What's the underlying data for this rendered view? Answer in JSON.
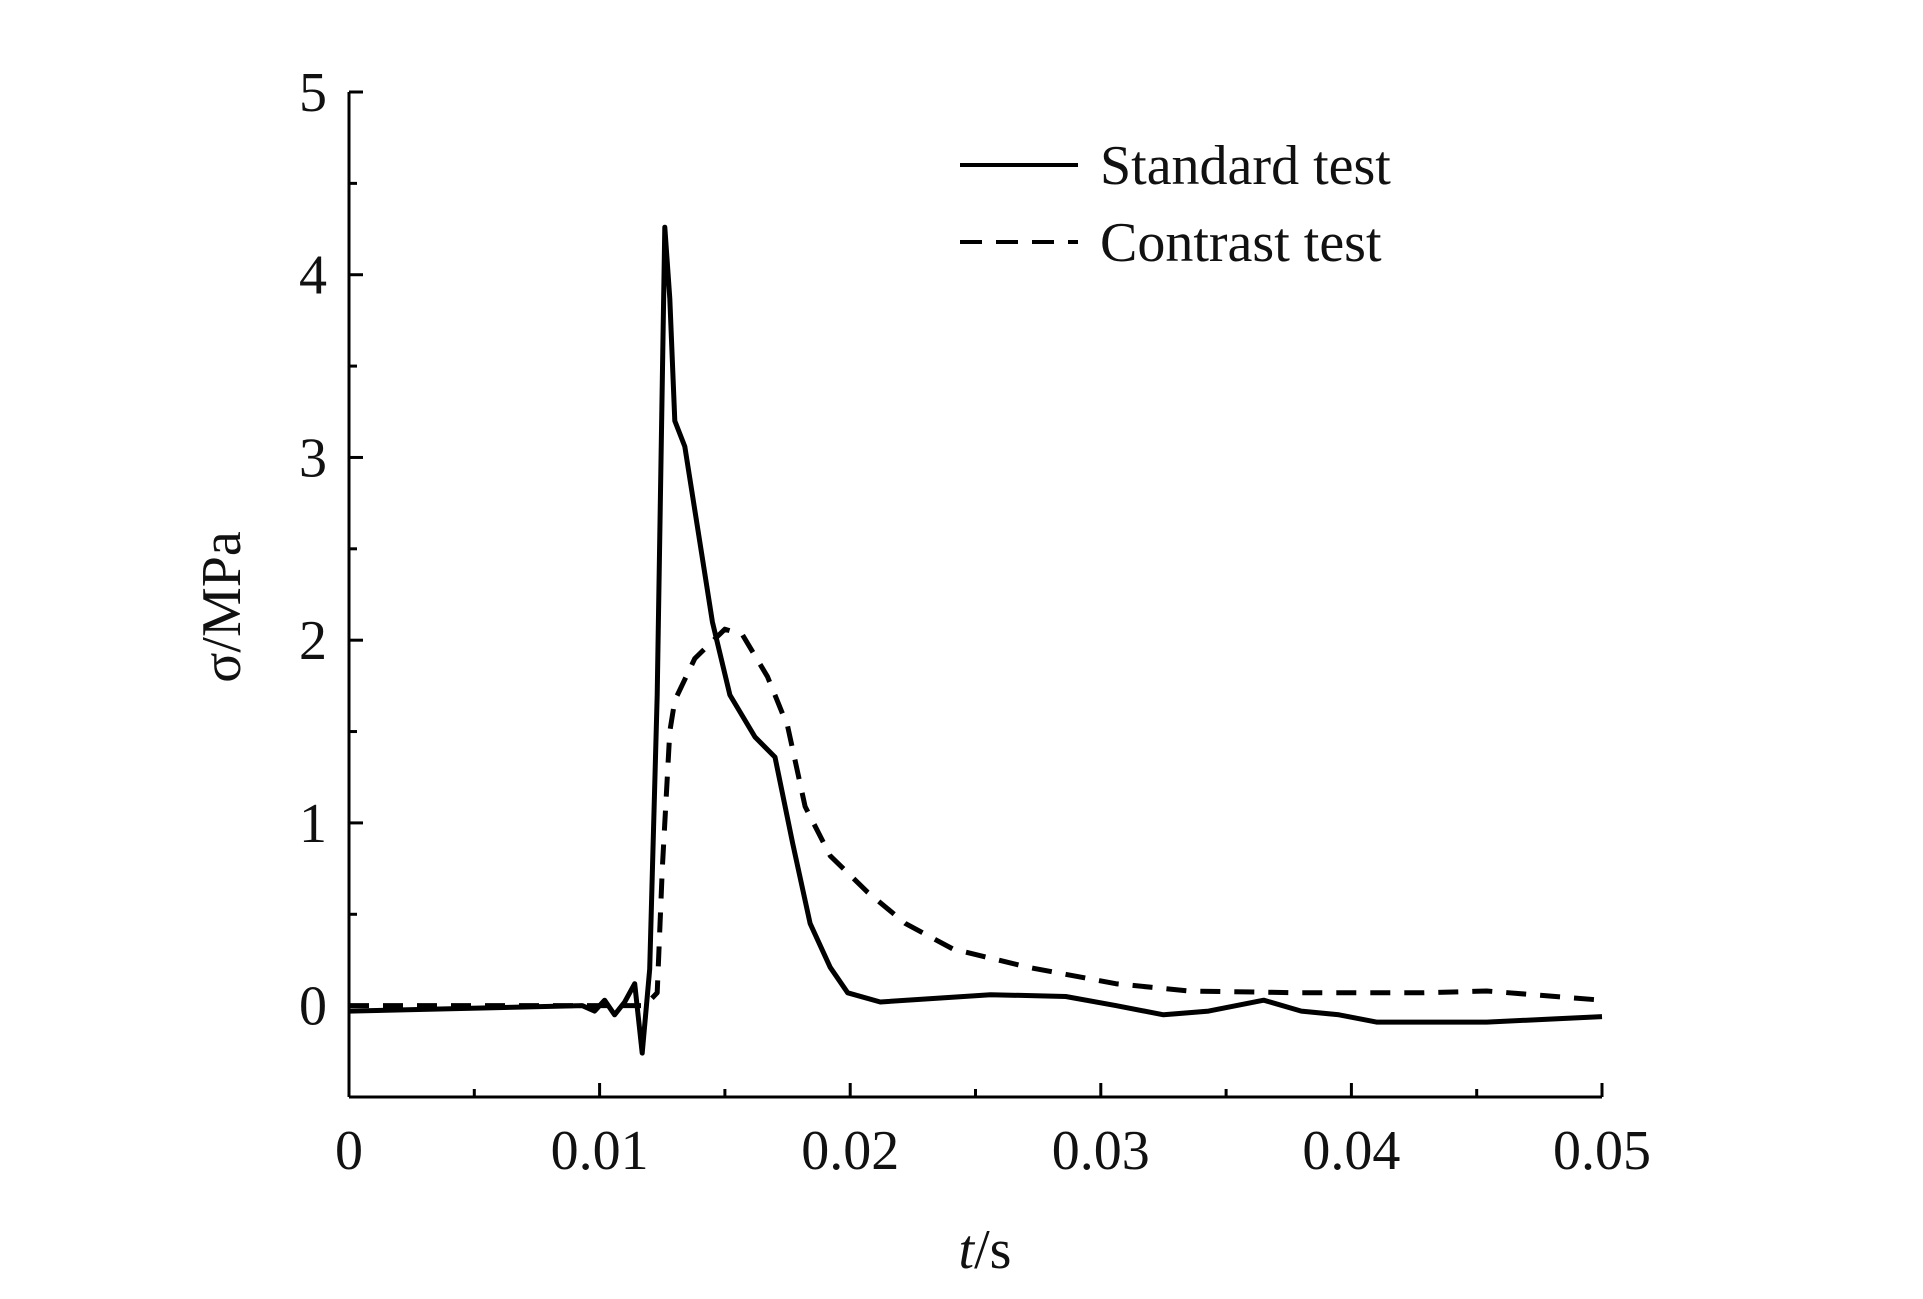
{
  "chart_data": {
    "type": "line",
    "title": "",
    "xlabel_italic": "t",
    "xlabel_unit": "/s",
    "ylabel": "σ/MPa",
    "xlim": [
      0,
      0.05
    ],
    "ylim": [
      -0.5,
      5
    ],
    "xticks": [
      0,
      0.01,
      0.02,
      0.03,
      0.04,
      0.05
    ],
    "xtick_labels": [
      "0",
      "0.01",
      "0.02",
      "0.03",
      "0.04",
      "0.05"
    ],
    "yticks": [
      0,
      1,
      2,
      3,
      4,
      5
    ],
    "ytick_labels": [
      "0",
      "1",
      "2",
      "3",
      "4",
      "5"
    ],
    "grid": false,
    "legend_position": "top-right",
    "series": [
      {
        "name": "Standard test",
        "style": "solid",
        "color": "#000000",
        "x": [
          0,
          0.0093,
          0.0098,
          0.0102,
          0.0106,
          0.011,
          0.0114,
          0.0117,
          0.012,
          0.0123,
          0.0126,
          0.0128,
          0.013,
          0.0134,
          0.0145,
          0.0152,
          0.0162,
          0.017,
          0.0177,
          0.0184,
          0.0192,
          0.0199,
          0.0212,
          0.0256,
          0.0286,
          0.0306,
          0.0325,
          0.0343,
          0.0365,
          0.038,
          0.0395,
          0.041,
          0.0454,
          0.05
        ],
        "y": [
          -0.03,
          0,
          -0.03,
          0.03,
          -0.05,
          0.02,
          0.12,
          -0.26,
          0.2,
          1.7,
          4.26,
          3.87,
          3.2,
          3.06,
          2.1,
          1.7,
          1.47,
          1.36,
          0.89,
          0.45,
          0.21,
          0.07,
          0.02,
          0.06,
          0.05,
          0.0,
          -0.05,
          -0.03,
          0.03,
          -0.03,
          -0.05,
          -0.09,
          -0.09,
          -0.06
        ]
      },
      {
        "name": "Contrast test",
        "style": "dashed",
        "color": "#000000",
        "x": [
          0,
          0.0118,
          0.0123,
          0.0125,
          0.0128,
          0.013,
          0.0138,
          0.015,
          0.0157,
          0.0167,
          0.0175,
          0.0182,
          0.0192,
          0.0207,
          0.0222,
          0.0241,
          0.0271,
          0.0306,
          0.0335,
          0.038,
          0.0429,
          0.0454,
          0.05
        ],
        "y": [
          0,
          0,
          0.07,
          0.75,
          1.5,
          1.67,
          1.9,
          2.06,
          2.03,
          1.8,
          1.53,
          1.09,
          0.82,
          0.62,
          0.45,
          0.31,
          0.21,
          0.12,
          0.08,
          0.07,
          0.07,
          0.08,
          0.03
        ]
      }
    ]
  }
}
